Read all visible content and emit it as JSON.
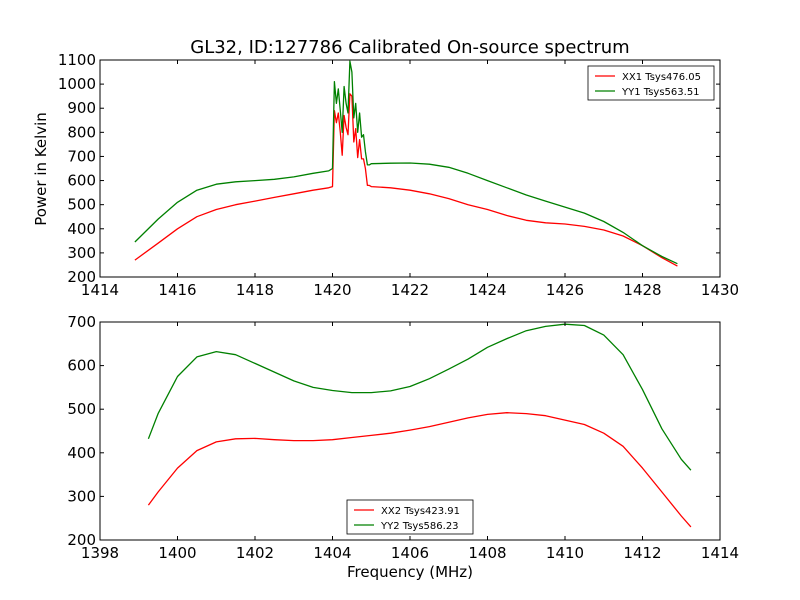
{
  "title": "GL32, ID:127786 Calibrated On-source spectrum",
  "chart_data": [
    {
      "type": "line",
      "xlim": [
        1414,
        1430
      ],
      "ylim": [
        200,
        1100
      ],
      "xticks": [
        "1414",
        "1416",
        "1418",
        "1420",
        "1422",
        "1424",
        "1426",
        "1428",
        "1430"
      ],
      "yticks": [
        "200",
        "300",
        "400",
        "500",
        "600",
        "700",
        "800",
        "900",
        "1000",
        "1100"
      ],
      "xlabel": "",
      "ylabel": "Power in Kelvin",
      "legend_position": "top-right",
      "series": [
        {
          "name": "XX1 Tsys476.05",
          "color": "#ff0000",
          "x": [
            1414.9,
            1415.5,
            1416,
            1416.5,
            1417,
            1417.5,
            1418,
            1418.5,
            1419,
            1419.5,
            1419.9,
            1420.0,
            1420.05,
            1420.1,
            1420.15,
            1420.2,
            1420.25,
            1420.3,
            1420.35,
            1420.4,
            1420.45,
            1420.5,
            1420.55,
            1420.6,
            1420.65,
            1420.7,
            1420.75,
            1420.8,
            1420.85,
            1420.9,
            1420.95,
            1421.0,
            1421.5,
            1422,
            1422.5,
            1423,
            1423.5,
            1424,
            1424.5,
            1425,
            1425.5,
            1426,
            1426.5,
            1427,
            1427.5,
            1428,
            1428.5,
            1428.9
          ],
          "values": [
            270,
            340,
            400,
            450,
            480,
            500,
            515,
            530,
            545,
            560,
            570,
            575,
            890,
            840,
            880,
            800,
            705,
            870,
            820,
            790,
            960,
            950,
            760,
            815,
            695,
            770,
            690,
            690,
            650,
            580,
            580,
            575,
            570,
            560,
            545,
            525,
            500,
            480,
            455,
            435,
            425,
            420,
            410,
            395,
            370,
            330,
            280,
            245
          ]
        },
        {
          "name": "YY1 Tsys563.51",
          "color": "#008000",
          "x": [
            1414.9,
            1415.5,
            1416,
            1416.5,
            1417,
            1417.5,
            1418,
            1418.5,
            1419,
            1419.5,
            1419.9,
            1420.0,
            1420.05,
            1420.1,
            1420.15,
            1420.2,
            1420.25,
            1420.3,
            1420.35,
            1420.4,
            1420.45,
            1420.5,
            1420.55,
            1420.6,
            1420.65,
            1420.7,
            1420.75,
            1420.8,
            1420.85,
            1420.9,
            1420.95,
            1421.0,
            1421.5,
            1422,
            1422.5,
            1423,
            1423.5,
            1424,
            1424.5,
            1425,
            1425.5,
            1426,
            1426.5,
            1427,
            1427.5,
            1428,
            1428.5,
            1428.9
          ],
          "values": [
            345,
            440,
            510,
            560,
            585,
            595,
            600,
            605,
            615,
            630,
            640,
            650,
            1010,
            920,
            980,
            890,
            800,
            990,
            920,
            880,
            1095,
            1050,
            860,
            920,
            800,
            880,
            780,
            790,
            720,
            665,
            665,
            670,
            672,
            673,
            668,
            655,
            630,
            600,
            570,
            540,
            515,
            490,
            465,
            430,
            385,
            330,
            285,
            255
          ]
        }
      ]
    },
    {
      "type": "line",
      "xlim": [
        1398,
        1414
      ],
      "ylim": [
        200,
        700
      ],
      "xticks": [
        "1398",
        "1400",
        "1402",
        "1404",
        "1406",
        "1408",
        "1410",
        "1412",
        "1414"
      ],
      "yticks": [
        "200",
        "300",
        "400",
        "500",
        "600",
        "700"
      ],
      "xlabel": "Frequency (MHz)",
      "ylabel": "",
      "legend_position": "bottom-center",
      "series": [
        {
          "name": "XX2 Tsys423.91",
          "color": "#ff0000",
          "x": [
            1399.25,
            1399.5,
            1400,
            1400.5,
            1401,
            1401.5,
            1402,
            1402.5,
            1403,
            1403.5,
            1404,
            1404.5,
            1405,
            1405.5,
            1406,
            1406.5,
            1407,
            1407.5,
            1408,
            1408.5,
            1409,
            1409.5,
            1410,
            1410.5,
            1411,
            1411.5,
            1412,
            1412.5,
            1413,
            1413.25
          ],
          "values": [
            280,
            310,
            365,
            405,
            425,
            432,
            433,
            430,
            428,
            428,
            430,
            435,
            440,
            445,
            452,
            460,
            470,
            480,
            488,
            492,
            490,
            485,
            475,
            465,
            445,
            415,
            365,
            310,
            255,
            230
          ]
        },
        {
          "name": "YY2 Tsys586.23",
          "color": "#008000",
          "x": [
            1399.25,
            1399.5,
            1400,
            1400.5,
            1401,
            1401.5,
            1402,
            1402.5,
            1403,
            1403.5,
            1404,
            1404.5,
            1405,
            1405.5,
            1406,
            1406.5,
            1407,
            1407.5,
            1408,
            1408.5,
            1409,
            1409.5,
            1410,
            1410.5,
            1411,
            1411.5,
            1412,
            1412.5,
            1413,
            1413.25
          ],
          "values": [
            432,
            490,
            575,
            620,
            632,
            625,
            605,
            585,
            565,
            550,
            543,
            538,
            538,
            542,
            552,
            570,
            592,
            615,
            642,
            662,
            680,
            690,
            695,
            692,
            670,
            625,
            545,
            455,
            385,
            360
          ]
        }
      ]
    }
  ]
}
